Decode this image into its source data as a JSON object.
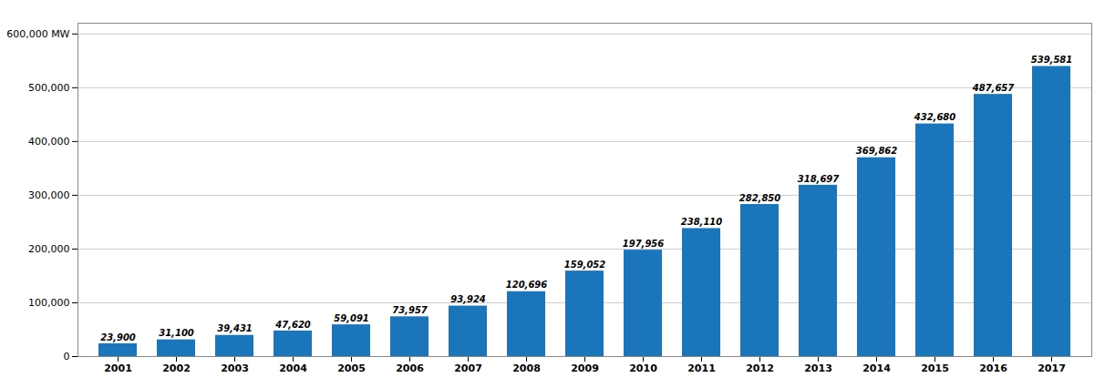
{
  "chart_data": {
    "type": "bar",
    "categories": [
      "2001",
      "2002",
      "2003",
      "2004",
      "2005",
      "2006",
      "2007",
      "2008",
      "2009",
      "2010",
      "2011",
      "2012",
      "2013",
      "2014",
      "2015",
      "2016",
      "2017"
    ],
    "values": [
      23900,
      31100,
      39431,
      47620,
      59091,
      73957,
      93924,
      120696,
      159052,
      197956,
      238110,
      282850,
      318697,
      369862,
      432680,
      487657,
      539581
    ],
    "value_labels": [
      "23,900",
      "31,100",
      "39,431",
      "47,620",
      "59,091",
      "73,957",
      "93,924",
      "120,696",
      "159,052",
      "197,956",
      "238,110",
      "282,850",
      "318,697",
      "369,862",
      "432,680",
      "487,657",
      "539,581"
    ],
    "color": "#1B75BB",
    "ylim": [
      0,
      620000
    ],
    "yticks": [
      0,
      {
        "value": 100000,
        "label": "100,000"
      },
      {
        "value": 200000,
        "label": "200,000"
      },
      {
        "value": 300000,
        "label": "300,000"
      },
      {
        "value": 400000,
        "label": "400,000"
      },
      {
        "value": 500000,
        "label": "500,000"
      },
      {
        "value": 600000,
        "label": "600,000 MW"
      }
    ],
    "grid": true,
    "data_labels": true
  }
}
